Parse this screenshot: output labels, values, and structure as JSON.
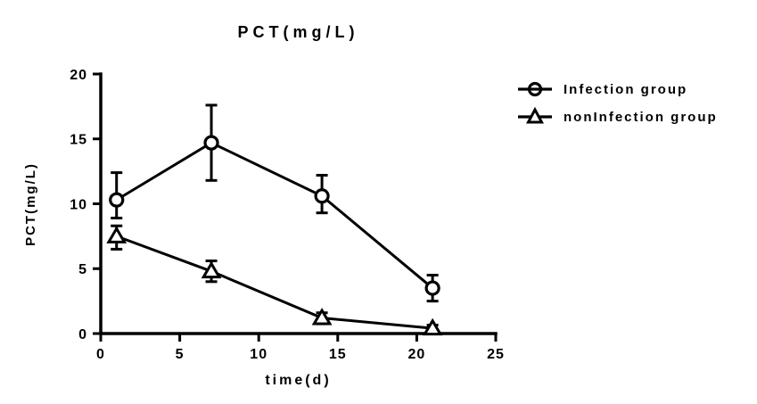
{
  "figure": {
    "title": "PCT(mg/L)",
    "x_label": "time(d)",
    "y_label": "PCT(mg/L)",
    "background_color": "#ffffff",
    "ink_color": "#000000"
  },
  "legend": {
    "position": "right",
    "entries": [
      {
        "label": "Infection group",
        "marker": "circle"
      },
      {
        "label": "nonInfection group",
        "marker": "triangle"
      }
    ]
  },
  "chart_data": {
    "type": "line",
    "title": "PCT(mg/L)",
    "xlabel": "time(d)",
    "ylabel": "PCT(mg/L)",
    "x": [
      1,
      7,
      14,
      21
    ],
    "x_ticks": [
      0,
      5,
      10,
      15,
      20,
      25
    ],
    "y_ticks": [
      0,
      5,
      10,
      15,
      20
    ],
    "xlim": [
      0,
      25
    ],
    "ylim": [
      0,
      20
    ],
    "grid": false,
    "error_bars": true,
    "legend_position": "right",
    "series": [
      {
        "name": "Infection group",
        "marker": "circle",
        "values": [
          10.3,
          14.7,
          10.6,
          3.5
        ],
        "err_high": [
          12.4,
          17.6,
          12.2,
          4.5
        ],
        "err_low": [
          8.9,
          11.8,
          9.3,
          2.5
        ]
      },
      {
        "name": "nonInfection group",
        "marker": "triangle",
        "values": [
          7.5,
          4.8,
          1.2,
          0.4
        ],
        "err_high": [
          8.3,
          5.6,
          1.6,
          0.65
        ],
        "err_low": [
          6.5,
          4.0,
          0.75,
          0.25
        ]
      }
    ]
  }
}
